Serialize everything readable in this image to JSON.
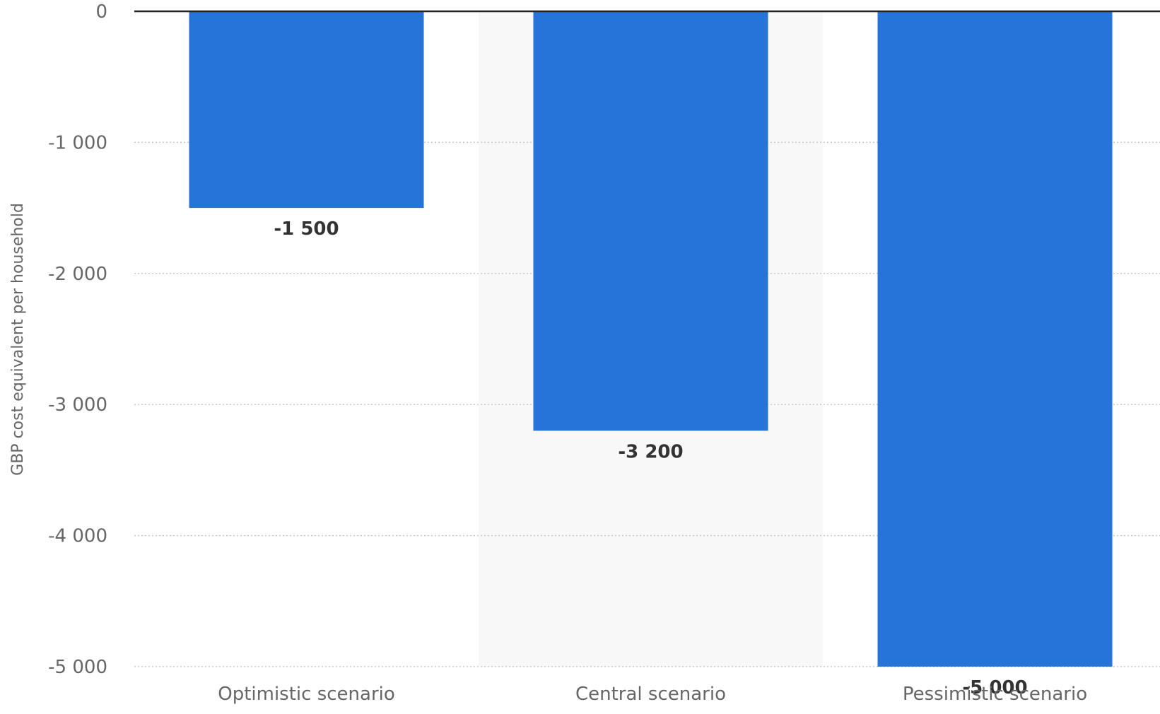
{
  "chart_data": {
    "type": "bar",
    "categories": [
      "Optimistic scenario",
      "Central scenario",
      "Pessimistic scenario"
    ],
    "values": [
      -1500,
      -3200,
      -5000
    ],
    "data_labels": [
      "-1 500",
      "-3 200",
      "-5 000"
    ],
    "ylabel": "GBP cost equivalent per household",
    "xlabel": "",
    "ylim": [
      -5000,
      0
    ],
    "yticks": [
      0,
      -1000,
      -2000,
      -3000,
      -4000,
      -5000
    ],
    "ytick_labels": [
      "0",
      "-1 000",
      "-2 000",
      "-3 000",
      "-4 000",
      "-5 000"
    ],
    "grid": true,
    "bar_color": "#2673D9",
    "highlight_band_color": "#F8F8F8"
  }
}
